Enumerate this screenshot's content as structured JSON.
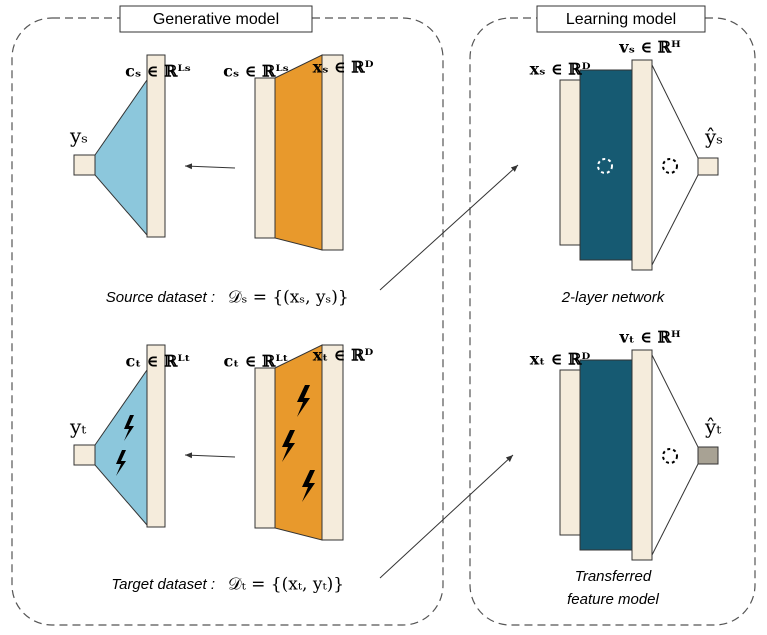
{
  "panels": [
    {
      "title": "Generative model",
      "source": {
        "label_c_left": "cₛ ∈ ℝᴸˢ",
        "label_c": "cₛ ∈ ℝᴸˢ",
        "label_x": "xₛ ∈ ℝᴰ",
        "label_y": "yₛ",
        "caption": "Source dataset :",
        "formula": "𝒟ₛ = {(xₛ, yₛ)}"
      },
      "target": {
        "label_c_left": "cₜ ∈ ℝᴸᵗ",
        "label_c": "cₜ ∈ ℝᴸᵗ",
        "label_x": "xₜ ∈ ℝᴰ",
        "label_y": "yₜ",
        "caption": "Target dataset :",
        "formula": "𝒟ₜ = {(xₜ, yₜ)}"
      }
    },
    {
      "title": "Learning model",
      "source": {
        "label_x": "xₛ ∈ ℝᴰ",
        "label_v": "vₛ ∈ ℝᴴ",
        "label_y": "ŷₛ",
        "caption": "2-layer network"
      },
      "target": {
        "label_x": "xₜ ∈ ℝᴰ",
        "label_v": "vₜ ∈ ℝᴴ",
        "label_y": "ŷₜ",
        "caption_1": "Transferred",
        "caption_2": "feature model"
      }
    }
  ]
}
